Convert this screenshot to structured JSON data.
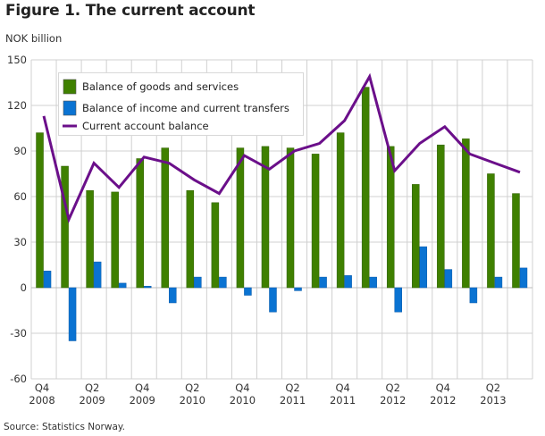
{
  "chart_data": {
    "type": "bar",
    "title": "Figure 1. The current account",
    "ylabel": "NOK billion",
    "xlabel": "",
    "source": "Source: Statistics Norway.",
    "ylim": [
      -60,
      150
    ],
    "yticks": [
      150,
      120,
      90,
      60,
      30,
      0,
      -30,
      -60
    ],
    "grid": true,
    "legend_position": "top-left",
    "categories": [
      "Q4 2008",
      "Q1 2009",
      "Q2 2009",
      "Q3 2009",
      "Q4 2009",
      "Q1 2010",
      "Q2 2010",
      "Q3 2010",
      "Q4 2010",
      "Q1 2011",
      "Q2 2011",
      "Q3 2011",
      "Q4 2011",
      "Q1 2012",
      "Q2 2012",
      "Q3 2012",
      "Q4 2012",
      "Q1 2013",
      "Q2 2013",
      "Q3 2013"
    ],
    "xtick_labels": [
      {
        "index": 0,
        "q": "Q4",
        "y": "2008"
      },
      {
        "index": 2,
        "q": "Q2",
        "y": "2009"
      },
      {
        "index": 4,
        "q": "Q4",
        "y": "2009"
      },
      {
        "index": 6,
        "q": "Q2",
        "y": "2010"
      },
      {
        "index": 8,
        "q": "Q4",
        "y": "2010"
      },
      {
        "index": 10,
        "q": "Q2",
        "y": "2011"
      },
      {
        "index": 12,
        "q": "Q4",
        "y": "2011"
      },
      {
        "index": 14,
        "q": "Q2",
        "y": "2012"
      },
      {
        "index": 16,
        "q": "Q4",
        "y": "2012"
      },
      {
        "index": 18,
        "q": "Q2",
        "y": "2013"
      }
    ],
    "series": [
      {
        "name": "Balance of goods and services",
        "kind": "bar",
        "color": "#3f8000",
        "values": [
          102,
          80,
          64,
          63,
          85,
          92,
          64,
          56,
          92,
          93,
          92,
          88,
          102,
          132,
          93,
          68,
          94,
          98,
          75,
          62
        ]
      },
      {
        "name": "Balance of income and current transfers",
        "kind": "bar",
        "color": "#0a73d2",
        "values": [
          11,
          -35,
          17,
          3,
          1,
          -10,
          7,
          7,
          -5,
          -16,
          -2,
          7,
          8,
          7,
          -16,
          27,
          12,
          -10,
          7,
          13
        ]
      },
      {
        "name": "Current account balance",
        "kind": "line",
        "color": "#6b0f8a",
        "values": [
          113,
          45,
          82,
          66,
          86,
          82,
          71,
          62,
          87,
          78,
          90,
          95,
          110,
          139,
          77,
          95,
          106,
          88,
          82,
          76
        ]
      }
    ]
  }
}
